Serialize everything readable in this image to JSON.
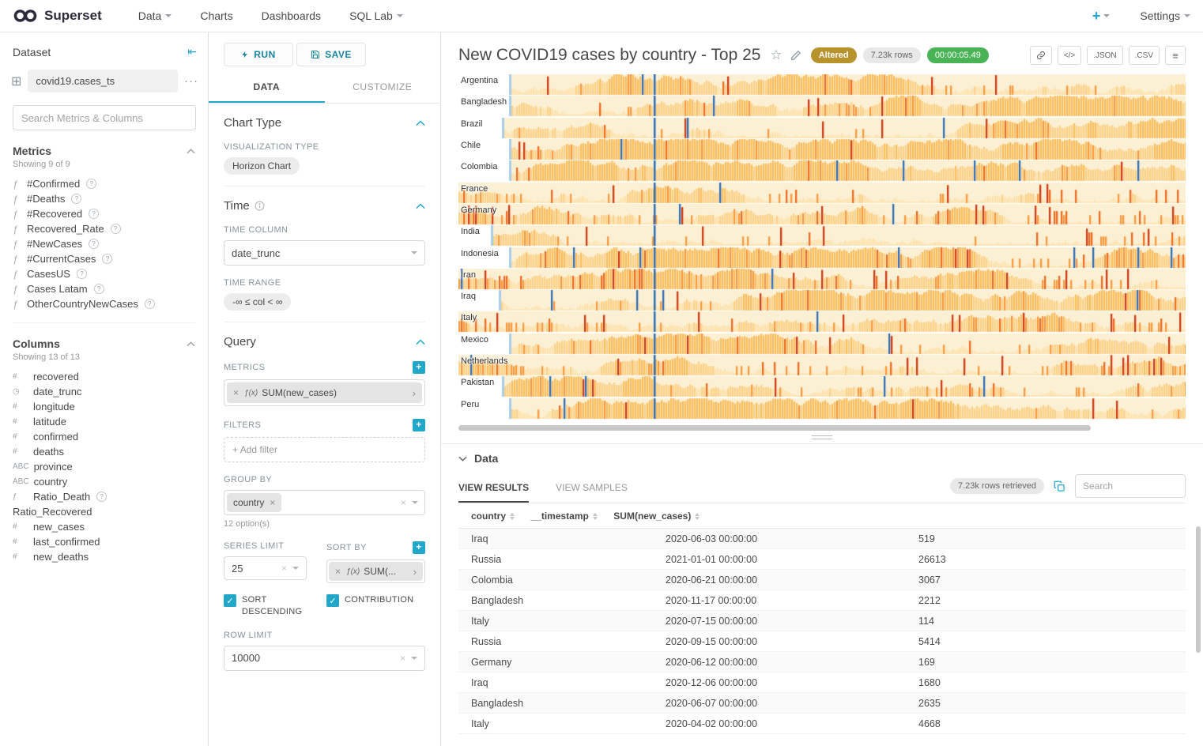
{
  "colors": {
    "accent": "#20A7C9",
    "altered_badge": "#B8932C",
    "timer_badge": "#49B356",
    "rows_badge_bg": "#E8E8E8"
  },
  "icons": {
    "function": "ƒ",
    "collapse": "⇤",
    "grid": "⊞",
    "more": "···",
    "star": "☆",
    "menu": "≡",
    "code": "</>",
    "pill_arrow": "›",
    "clear": "×",
    "plus": "+",
    "check": "✓",
    "chevron_note": "chevrons drawn as svg"
  },
  "navbar": {
    "brand": "Superset",
    "menu": [
      {
        "label": "Data",
        "caret": true
      },
      {
        "label": "Charts",
        "caret": false
      },
      {
        "label": "Dashboards",
        "caret": false
      },
      {
        "label": "SQL Lab",
        "caret": true
      }
    ],
    "plus_label": "+",
    "settings_label": "Settings"
  },
  "dataset": {
    "panel_title": "Dataset",
    "name": "covid19.cases_ts",
    "search_placeholder": "Search Metrics & Columns",
    "metrics_title": "Metrics",
    "metrics_showing": "Showing 9 of 9",
    "metrics": [
      {
        "name": "#Confirmed",
        "help": true
      },
      {
        "name": "#Deaths",
        "help": true
      },
      {
        "name": "#Recovered",
        "help": true
      },
      {
        "name": "Recovered_Rate",
        "help": true
      },
      {
        "name": "#NewCases",
        "help": true
      },
      {
        "name": "#CurrentCases",
        "help": true
      },
      {
        "name": "CasesUS",
        "help": true
      },
      {
        "name": "Cases Latam",
        "help": true
      },
      {
        "name": "OtherCountryNewCases",
        "help": true
      }
    ],
    "columns_title": "Columns",
    "columns_showing": "Showing 13 of 13",
    "columns": [
      {
        "name": "recovered",
        "icon": "#",
        "help": false
      },
      {
        "name": "date_trunc",
        "icon": "◷",
        "help": false
      },
      {
        "name": "longitude",
        "icon": "#",
        "help": false
      },
      {
        "name": "latitude",
        "icon": "#",
        "help": false
      },
      {
        "name": "confirmed",
        "icon": "#",
        "help": false
      },
      {
        "name": "deaths",
        "icon": "#",
        "help": false
      },
      {
        "name": "province",
        "icon": "ABC",
        "help": false
      },
      {
        "name": "country",
        "icon": "ABC",
        "help": false
      },
      {
        "name": "Ratio_Death",
        "icon": "ƒ",
        "help": true
      },
      {
        "name": "Ratio_Recovered",
        "icon": "",
        "help": false
      },
      {
        "name": "new_cases",
        "icon": "#",
        "help": false
      },
      {
        "name": "last_confirmed",
        "icon": "#",
        "help": false
      },
      {
        "name": "new_deaths",
        "icon": "#",
        "help": false
      }
    ]
  },
  "controls": {
    "run_label": "RUN",
    "save_label": "SAVE",
    "tab_data": "DATA",
    "tab_customize": "CUSTOMIZE",
    "chart_type": {
      "section_title": "Chart Type",
      "viz_type_label": "VISUALIZATION TYPE",
      "viz_type_value": "Horizon Chart"
    },
    "time": {
      "section_title": "Time",
      "time_column_label": "TIME COLUMN",
      "time_column_value": "date_trunc",
      "time_range_label": "TIME RANGE",
      "time_range_value": "-∞ ≤ col < ∞"
    },
    "query": {
      "section_title": "Query",
      "metrics_label": "METRICS",
      "metric_prefix": "ƒ(x)",
      "metric_value": "SUM(new_cases)",
      "filters_label": "FILTERS",
      "add_filter_label": "Add filter",
      "group_by_label": "GROUP BY",
      "group_by_value": "country",
      "group_by_options": "12 option(s)",
      "series_limit_label": "SERIES LIMIT",
      "series_limit_value": "25",
      "sort_by_label": "SORT BY",
      "sort_by_prefix": "ƒ(x)",
      "sort_by_value": "SUM(...",
      "sort_descending_label": "SORT DESCENDING",
      "contribution_label": "CONTRIBUTION",
      "row_limit_label": "ROW LIMIT",
      "row_limit_value": "10000"
    }
  },
  "chart": {
    "title": "New COVID19 cases by country - Top 25",
    "altered_label": "Altered",
    "rows_label": "7.23k rows",
    "timer_label": "00:00:05.49",
    "json_label": ".JSON",
    "csv_label": ".CSV",
    "row_bg": "#FCF0D4",
    "blue_dark": "#2F6DB5",
    "blue_light": "#A9CDE8",
    "palette": [
      "#FDE2AC",
      "#FCD188",
      "#FBBE5E",
      "#F79A3E",
      "#EC6C1F",
      "#CE3A12"
    ],
    "countries": [
      {
        "name": "Argentina",
        "start": 0.07,
        "heat": 0.3
      },
      {
        "name": "Bangladesh",
        "start": 0.07,
        "heat": 0.35
      },
      {
        "name": "Brazil",
        "start": 0.06,
        "heat": 0.35
      },
      {
        "name": "Chile",
        "start": 0.07,
        "heat": 0.3
      },
      {
        "name": "Colombia",
        "start": 0.07,
        "heat": 0.22
      },
      {
        "name": "France",
        "start": 0.0,
        "heat": 0.45
      },
      {
        "name": "Germany",
        "start": 0.0,
        "heat": 0.5
      },
      {
        "name": "India",
        "start": 0.045,
        "heat": 0.4
      },
      {
        "name": "Indonesia",
        "start": 0.07,
        "heat": 0.55
      },
      {
        "name": "Iran",
        "start": 0.0,
        "heat": 0.65
      },
      {
        "name": "Iraq",
        "start": 0.055,
        "heat": 0.35
      },
      {
        "name": "Italy",
        "start": 0.0,
        "heat": 0.6
      },
      {
        "name": "Mexico",
        "start": 0.07,
        "heat": 0.35
      },
      {
        "name": "Netherlands",
        "start": 0.0,
        "heat": 0.55
      },
      {
        "name": "Pakistan",
        "start": 0.06,
        "heat": 0.4
      },
      {
        "name": "Peru",
        "start": 0.07,
        "heat": 0.25
      }
    ]
  },
  "results": {
    "section_title": "Data",
    "tab_results": "VIEW RESULTS",
    "tab_samples": "VIEW SAMPLES",
    "rows_badge": "7.23k rows retrieved",
    "search_placeholder": "Search",
    "columns": [
      "country",
      "__timestamp",
      "SUM(new_cases)"
    ],
    "rows": [
      [
        "Iraq",
        "2020-06-03 00:00:00",
        "519"
      ],
      [
        "Russia",
        "2021-01-01 00:00:00",
        "26613"
      ],
      [
        "Colombia",
        "2020-06-21 00:00:00",
        "3067"
      ],
      [
        "Bangladesh",
        "2020-11-17 00:00:00",
        "2212"
      ],
      [
        "Italy",
        "2020-07-15 00:00:00",
        "114"
      ],
      [
        "Russia",
        "2020-09-15 00:00:00",
        "5414"
      ],
      [
        "Germany",
        "2020-06-12 00:00:00",
        "169"
      ],
      [
        "Iraq",
        "2020-12-06 00:00:00",
        "1680"
      ],
      [
        "Bangladesh",
        "2020-06-07 00:00:00",
        "2635"
      ],
      [
        "Italy",
        "2020-04-02 00:00:00",
        "4668"
      ]
    ]
  }
}
